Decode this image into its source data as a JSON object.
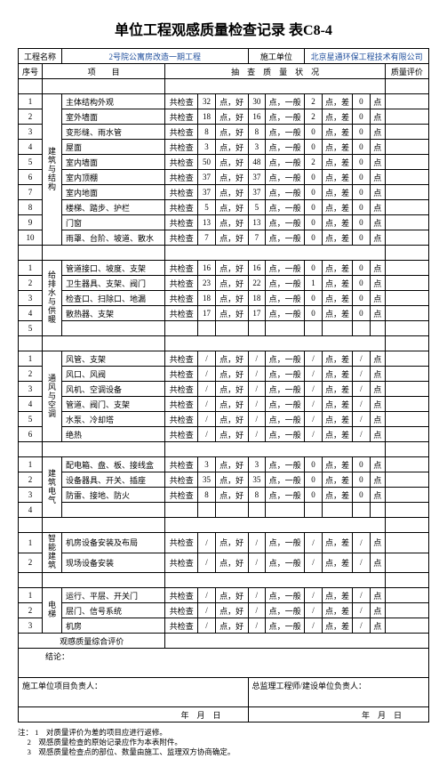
{
  "title": "单位工程观感质量检查记录 表C8-4",
  "header": {
    "projNameLabel": "工程名称",
    "projName": "2号院公寓房改造一期工程",
    "contractorLabel": "施工单位",
    "contractor": "北京星通环保工程技术有限公司"
  },
  "cols": {
    "seq": "序号",
    "item": "项　　目",
    "quality": "抽　查　质　量　状　况",
    "eval": "质量评价"
  },
  "groups": [
    {
      "label": "建筑与结构",
      "rows": [
        {
          "n": "1",
          "item": "主体结构外观",
          "a": "共检查",
          "b": "32",
          "c": "点，好",
          "d": "30",
          "e": "点，一般",
          "f": "2",
          "g": "点，差",
          "h": "0",
          "i": "点"
        },
        {
          "n": "2",
          "item": "室外墙面",
          "a": "共检查",
          "b": "18",
          "c": "点，好",
          "d": "16",
          "e": "点，一般",
          "f": "2",
          "g": "点，差",
          "h": "0",
          "i": "点"
        },
        {
          "n": "3",
          "item": "变形缝、雨水管",
          "a": "共检查",
          "b": "8",
          "c": "点，好",
          "d": "8",
          "e": "点，一般",
          "f": "0",
          "g": "点，差",
          "h": "0",
          "i": "点"
        },
        {
          "n": "4",
          "item": "屋面",
          "a": "共检查",
          "b": "3",
          "c": "点，好",
          "d": "3",
          "e": "点，一般",
          "f": "0",
          "g": "点，差",
          "h": "0",
          "i": "点"
        },
        {
          "n": "5",
          "item": "室内墙面",
          "a": "共检查",
          "b": "50",
          "c": "点，好",
          "d": "48",
          "e": "点，一般",
          "f": "2",
          "g": "点，差",
          "h": "0",
          "i": "点"
        },
        {
          "n": "6",
          "item": "室内顶棚",
          "a": "共检查",
          "b": "37",
          "c": "点，好",
          "d": "37",
          "e": "点，一般",
          "f": "0",
          "g": "点，差",
          "h": "0",
          "i": "点"
        },
        {
          "n": "7",
          "item": "室内地面",
          "a": "共检查",
          "b": "37",
          "c": "点，好",
          "d": "37",
          "e": "点，一般",
          "f": "0",
          "g": "点，差",
          "h": "0",
          "i": "点"
        },
        {
          "n": "8",
          "item": "楼梯、踏步、护栏",
          "a": "共检查",
          "b": "5",
          "c": "点，好",
          "d": "5",
          "e": "点，一般",
          "f": "0",
          "g": "点，差",
          "h": "0",
          "i": "点"
        },
        {
          "n": "9",
          "item": "门窗",
          "a": "共检查",
          "b": "13",
          "c": "点，好",
          "d": "13",
          "e": "点，一般",
          "f": "0",
          "g": "点，差",
          "h": "0",
          "i": "点"
        },
        {
          "n": "10",
          "item": "雨罩、台阶、坡道、散水",
          "a": "共检查",
          "b": "7",
          "c": "点，好",
          "d": "7",
          "e": "点，一般",
          "f": "0",
          "g": "点，差",
          "h": "0",
          "i": "点"
        }
      ]
    },
    {
      "label": "给排水与供暖",
      "rows": [
        {
          "n": "1",
          "item": "管道接口、坡度、支架",
          "a": "共检查",
          "b": "16",
          "c": "点，好",
          "d": "16",
          "e": "点，一般",
          "f": "0",
          "g": "点，差",
          "h": "0",
          "i": "点"
        },
        {
          "n": "2",
          "item": "卫生器具、支架、阀门",
          "a": "共检查",
          "b": "23",
          "c": "点，好",
          "d": "22",
          "e": "点，一般",
          "f": "1",
          "g": "点，差",
          "h": "0",
          "i": "点"
        },
        {
          "n": "3",
          "item": "检查口、扫除口、地漏",
          "a": "共检查",
          "b": "18",
          "c": "点，好",
          "d": "18",
          "e": "点，一般",
          "f": "0",
          "g": "点，差",
          "h": "0",
          "i": "点"
        },
        {
          "n": "4",
          "item": "散热器、支架",
          "a": "共检查",
          "b": "17",
          "c": "点，好",
          "d": "17",
          "e": "点，一般",
          "f": "0",
          "g": "点，差",
          "h": "0",
          "i": "点"
        },
        {
          "n": "5",
          "item": "",
          "a": "",
          "b": "",
          "c": "",
          "d": "",
          "e": "",
          "f": "",
          "g": "",
          "h": "",
          "i": ""
        }
      ]
    },
    {
      "label": "通风与空调",
      "rows": [
        {
          "n": "1",
          "item": "风管、支架",
          "a": "共检查",
          "b": "/",
          "c": "点，好",
          "d": "/",
          "e": "点，一般",
          "f": "/",
          "g": "点，差",
          "h": "/",
          "i": "点"
        },
        {
          "n": "2",
          "item": "风口、风阀",
          "a": "共检查",
          "b": "/",
          "c": "点，好",
          "d": "/",
          "e": "点，一般",
          "f": "/",
          "g": "点，差",
          "h": "/",
          "i": "点"
        },
        {
          "n": "3",
          "item": "风机、空调设备",
          "a": "共检查",
          "b": "/",
          "c": "点，好",
          "d": "/",
          "e": "点，一般",
          "f": "/",
          "g": "点，差",
          "h": "/",
          "i": "点"
        },
        {
          "n": "4",
          "item": "管道、阀门、支架",
          "a": "共检查",
          "b": "/",
          "c": "点，好",
          "d": "/",
          "e": "点，一般",
          "f": "/",
          "g": "点，差",
          "h": "/",
          "i": "点"
        },
        {
          "n": "5",
          "item": "水泵、冷却塔",
          "a": "共检查",
          "b": "/",
          "c": "点，好",
          "d": "/",
          "e": "点，一般",
          "f": "/",
          "g": "点，差",
          "h": "/",
          "i": "点"
        },
        {
          "n": "6",
          "item": "绝热",
          "a": "共检查",
          "b": "/",
          "c": "点，好",
          "d": "/",
          "e": "点，一般",
          "f": "/",
          "g": "点，差",
          "h": "/",
          "i": "点"
        }
      ]
    },
    {
      "label": "建筑电气",
      "rows": [
        {
          "n": "1",
          "item": "配电箱、盘、板、接线盒",
          "a": "共检查",
          "b": "3",
          "c": "点，好",
          "d": "3",
          "e": "点，一般",
          "f": "0",
          "g": "点，差",
          "h": "0",
          "i": "点"
        },
        {
          "n": "2",
          "item": "设备器具、开关、插座",
          "a": "共检查",
          "b": "35",
          "c": "点，好",
          "d": "35",
          "e": "点，一般",
          "f": "0",
          "g": "点，差",
          "h": "0",
          "i": "点"
        },
        {
          "n": "3",
          "item": "防雷、接地、防火",
          "a": "共检查",
          "b": "8",
          "c": "点，好",
          "d": "8",
          "e": "点，一般",
          "f": "0",
          "g": "点，差",
          "h": "0",
          "i": "点"
        },
        {
          "n": "4",
          "item": "",
          "a": "",
          "b": "",
          "c": "",
          "d": "",
          "e": "",
          "f": "",
          "g": "",
          "h": "",
          "i": ""
        }
      ]
    },
    {
      "label": "智能建筑",
      "rows": [
        {
          "n": "1",
          "item": "机房设备安装及布局",
          "a": "共检查",
          "b": "/",
          "c": "点，好",
          "d": "/",
          "e": "点，一般",
          "f": "/",
          "g": "点，差",
          "h": "/",
          "i": "点"
        },
        {
          "n": "2",
          "item": "现场设备安装",
          "a": "共检查",
          "b": "/",
          "c": "点，好",
          "d": "/",
          "e": "点，一般",
          "f": "/",
          "g": "点，差",
          "h": "/",
          "i": "点"
        }
      ]
    },
    {
      "label": "电梯",
      "rows": [
        {
          "n": "1",
          "item": "运行、平层、开关门",
          "a": "共检查",
          "b": "/",
          "c": "点，好",
          "d": "/",
          "e": "点，一般",
          "f": "/",
          "g": "点，差",
          "h": "/",
          "i": "点"
        },
        {
          "n": "2",
          "item": "层门、信号系统",
          "a": "共检查",
          "b": "/",
          "c": "点，好",
          "d": "/",
          "e": "点，一般",
          "f": "/",
          "g": "点，差",
          "h": "/",
          "i": "点"
        },
        {
          "n": "3",
          "item": "机房",
          "a": "共检查",
          "b": "/",
          "c": "点，好",
          "d": "/",
          "e": "点，一般",
          "f": "/",
          "g": "点，差",
          "h": "/",
          "i": "点"
        }
      ]
    }
  ],
  "overall": "观感质量综合评价",
  "sig": {
    "conclusion": "结论：",
    "left": "施工单位项目负责人：",
    "right": "总监理工程师/建设单位负责人：",
    "date": "年　月　日"
  },
  "notes": {
    "prefix": "注：",
    "n1": "1　对质量评价为差的项目应进行返修。",
    "n2": "2　观感质量检查的原始记录应作为本表附件。",
    "n3": "3　观感质量检查点的部位、数量由施工、监理双方协商确定。"
  }
}
